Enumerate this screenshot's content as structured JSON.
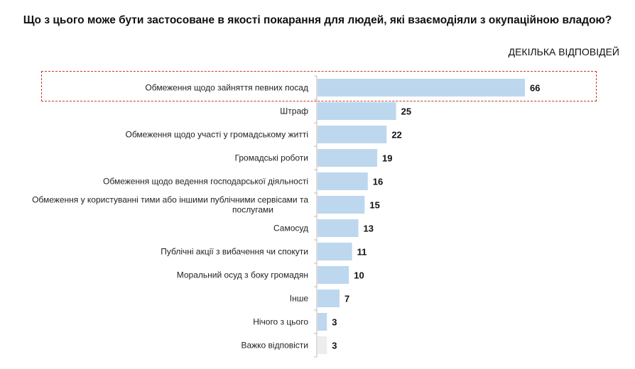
{
  "chart_data": {
    "type": "bar",
    "orientation": "horizontal",
    "title": "Що з цього може бути застосоване в якості покарання для людей, які взаємодіяли з окупаційною владою?",
    "subtitle": "ДЕКІЛЬКА ВІДПОВІДЕЙ",
    "categories": [
      "Обмеження щодо зайняття певних посад",
      "Штраф",
      "Обмеження щодо участі у громадському житті",
      "Громадські роботи",
      "Обмеження щодо ведення господарської діяльності",
      "Обмеження у користуванні тими або іншими публічними сервісами та послугами",
      "Самосуд",
      "Публічні акції з вибачення чи спокути",
      "Моральний осуд з боку громадян",
      "Інше",
      "Нічого з цього",
      "Важко відповісти"
    ],
    "values": [
      66,
      25,
      22,
      19,
      16,
      15,
      13,
      11,
      10,
      7,
      3,
      3
    ],
    "highlighted_category": "Обмеження щодо зайняття певних посад",
    "colors": {
      "bar": "#bdd7ee",
      "bar_neutral": "#ededed",
      "highlight_border": "#c0392b"
    },
    "xlim": [
      0,
      66
    ]
  }
}
